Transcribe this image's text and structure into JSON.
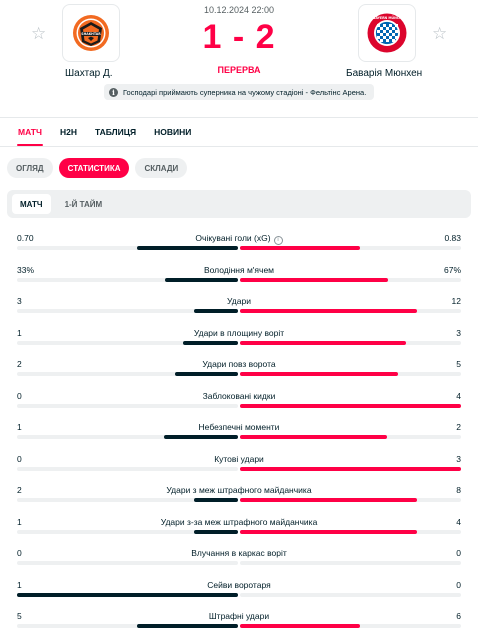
{
  "match": {
    "date": "10.12.2024 22:00",
    "score": "1 - 2",
    "phase": "ПЕРЕРВА",
    "home": {
      "name": "Шахтар Д.",
      "logo": "shakhtar-logo",
      "favorite_icon": "star-icon"
    },
    "away": {
      "name": "Баварія Мюнхен",
      "logo": "bayern-logo",
      "favorite_icon": "star-icon"
    },
    "notice": "Господарі приймають суперника на чужому стадіоні - Фельтінс Арена.",
    "logo_text": {
      "home": "SHAKHTAR",
      "away": "FC BAYERN MÜNCHEN"
    }
  },
  "tabs": [
    "МАТЧ",
    "H2H",
    "ТАБЛИЦЯ",
    "НОВИНИ"
  ],
  "subtabs": [
    "ОГЛЯД",
    "СТАТИСТИКА",
    "СКЛАДИ"
  ],
  "periods": [
    "МАТЧ",
    "1-Й ТАЙМ"
  ],
  "colors": {
    "accent": "#ff0046",
    "home_bar": "#001e28",
    "away_bar": "#ff0046",
    "track": "#eef0f1"
  },
  "stats": [
    {
      "label": "Очікувані голи (xG)",
      "home": "0.70",
      "away": "0.83",
      "info_icon": "info-icon"
    },
    {
      "label": "Володіння м'ячем",
      "home": "33%",
      "away": "67%"
    },
    {
      "label": "Удари",
      "home": "3",
      "away": "12"
    },
    {
      "label": "Удари в площину воріт",
      "home": "1",
      "away": "3"
    },
    {
      "label": "Удари повз ворота",
      "home": "2",
      "away": "5"
    },
    {
      "label": "Заблоковані кидки",
      "home": "0",
      "away": "4"
    },
    {
      "label": "Небезпечні моменти",
      "home": "1",
      "away": "2"
    },
    {
      "label": "Кутові удари",
      "home": "0",
      "away": "3"
    },
    {
      "label": "Удари з меж штрафного майданчика",
      "home": "2",
      "away": "8"
    },
    {
      "label": "Удари з-за меж штрафного майданчика",
      "home": "1",
      "away": "4"
    },
    {
      "label": "Влучання в каркас воріт",
      "home": "0",
      "away": "0"
    },
    {
      "label": "Сейви воротаря",
      "home": "1",
      "away": "0"
    },
    {
      "label": "Штрафні удари",
      "home": "5",
      "away": "6"
    }
  ]
}
